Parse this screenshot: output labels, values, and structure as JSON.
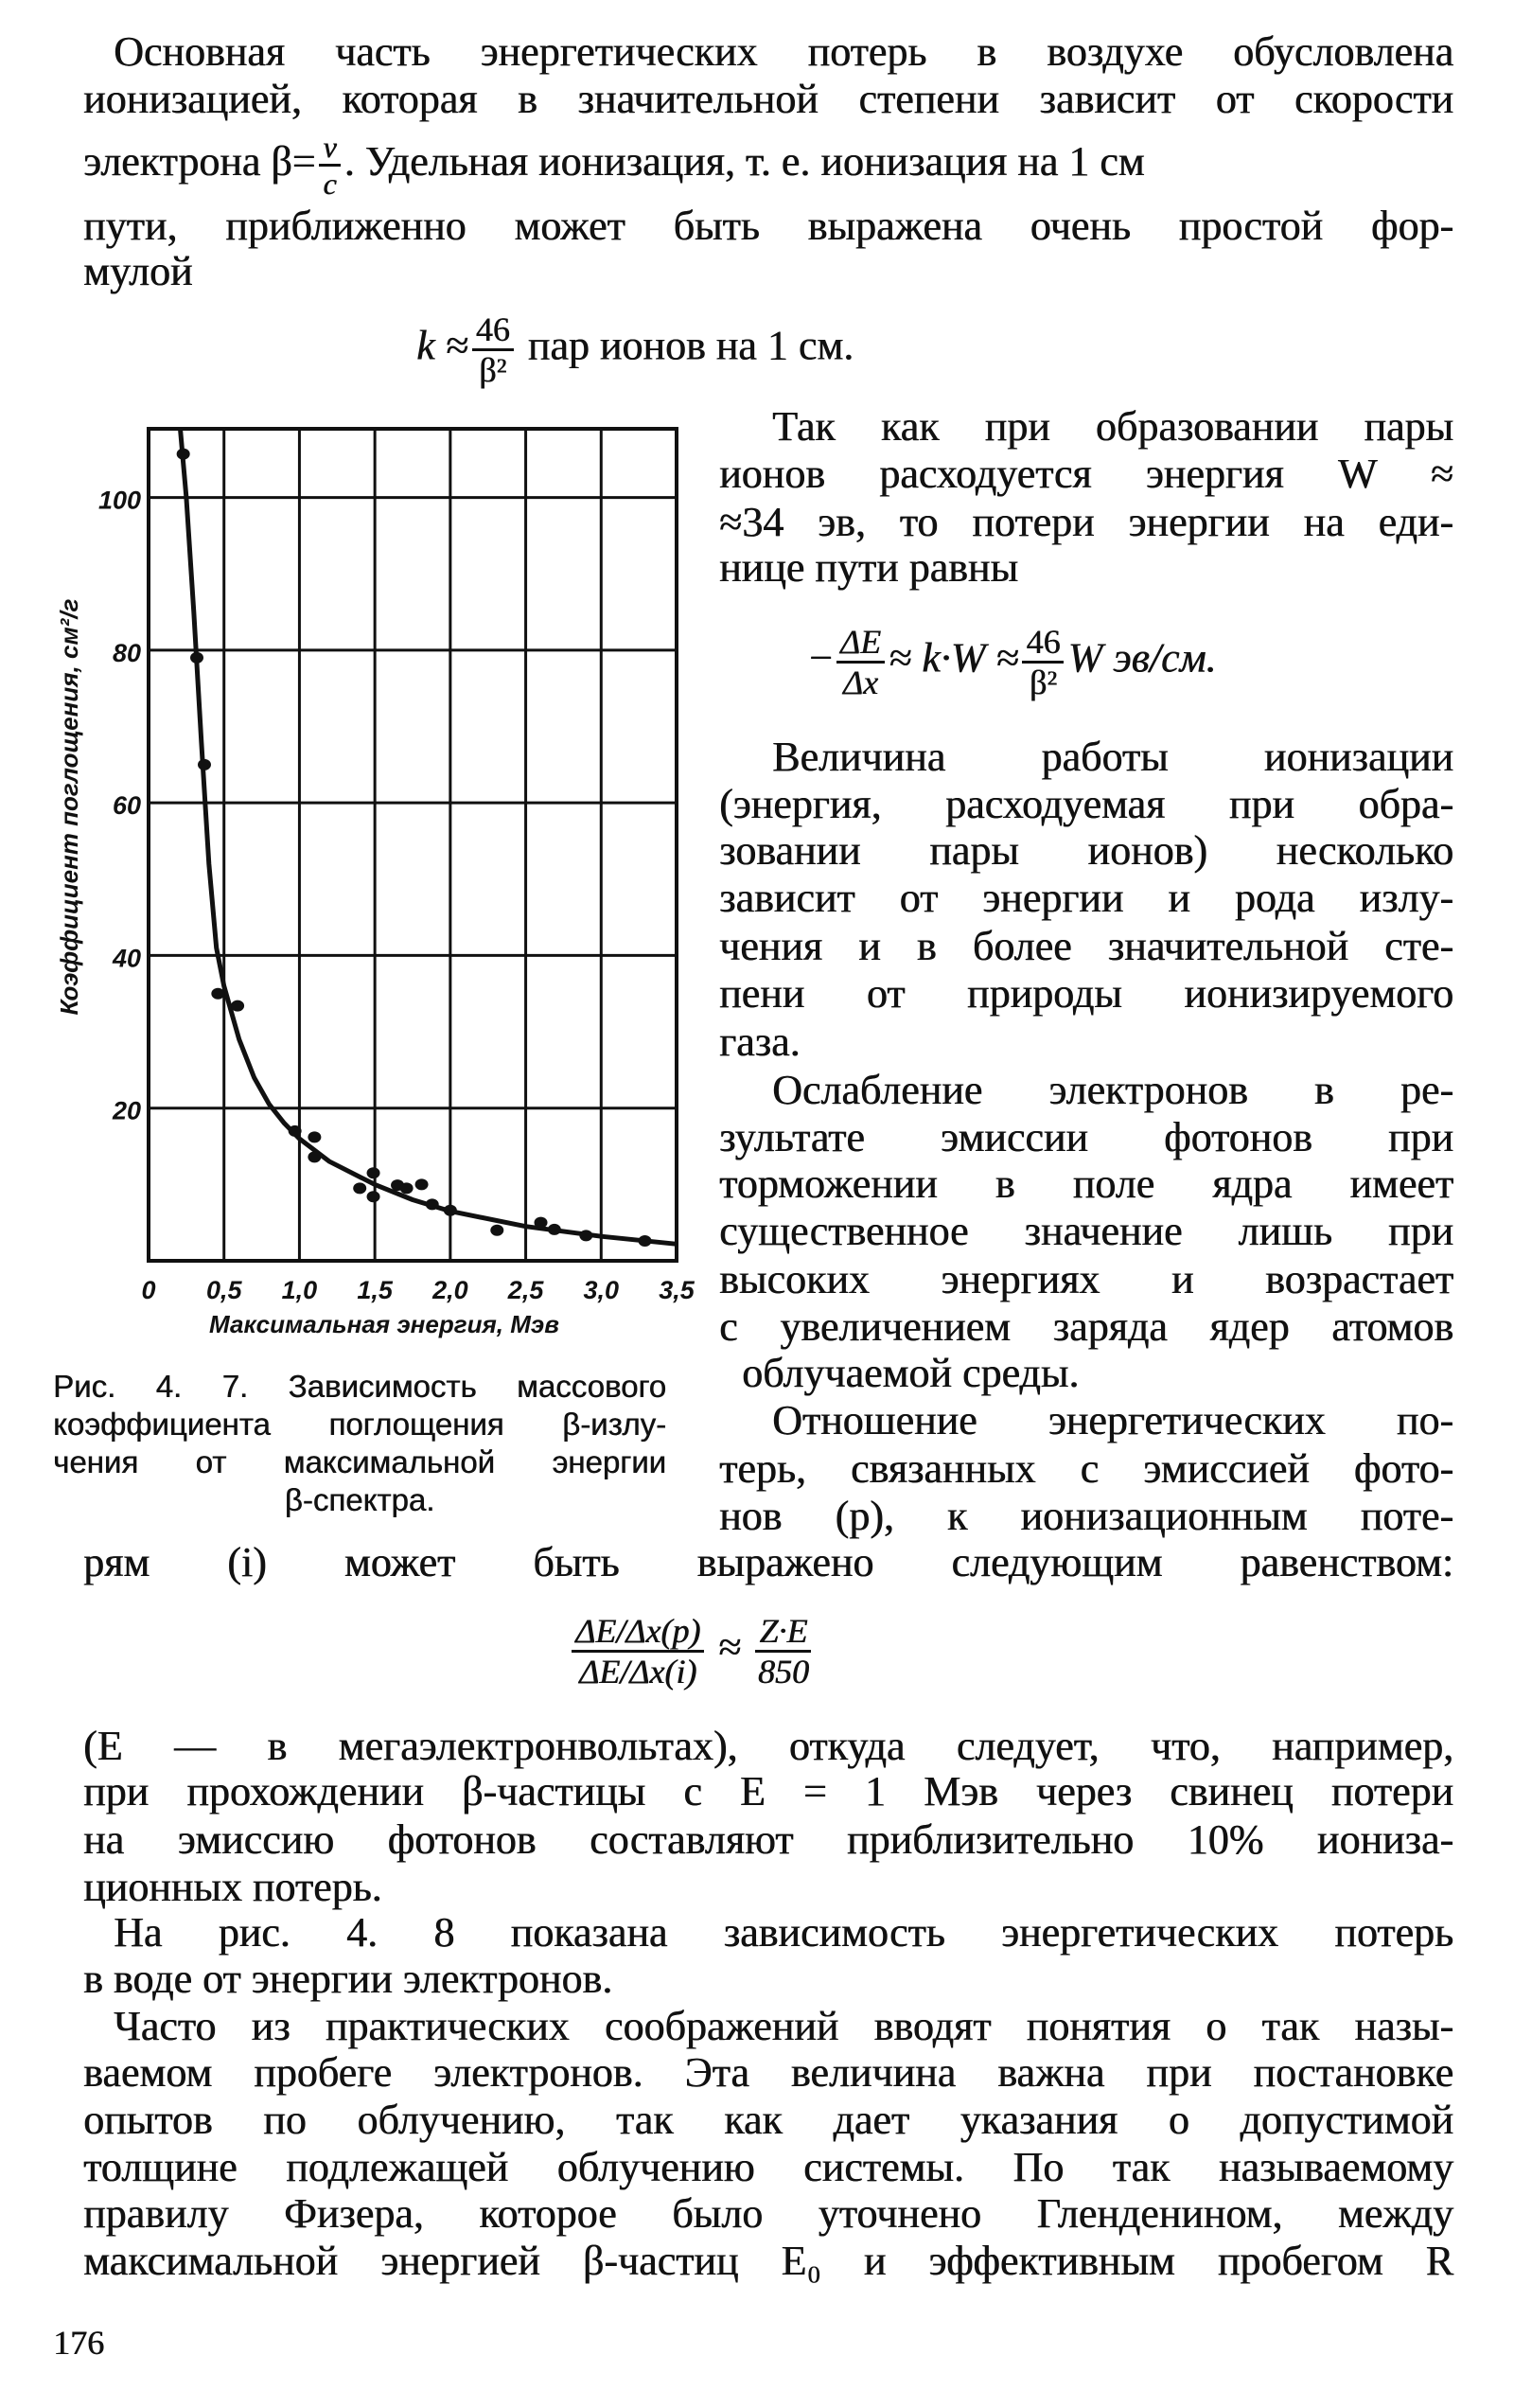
{
  "lines": [
    "Основная часть энергетических потерь в воздухе обусловлена",
    "ионизацией, которая в значительной степени зависит от скорости",
    "пути, приближенно может быть выражена очень простой фор-",
    "мулой",
    "Так как при образовании пары",
    "ионов расходуется энергия W ≈",
    "≈34 эв, то потери энергии на еди-",
    "нице пути равны",
    "Величина работы ионизации",
    "(энергия, расходуемая при обра-",
    "зовании пары ионов) несколько",
    "зависит от энергии и рода излу-",
    "чения и в более значительной сте-",
    "пени от природы ионизируемого",
    "газа.",
    "Ослабление электронов в ре-",
    "зультате эмиссии фотонов при",
    "торможении в поле ядра имеет",
    "существенное значение лишь при",
    "высоких энергиях и возрастает",
    "с увеличением заряда ядер атомов",
    "облучаемой среды.",
    "Отношение энергетических по-",
    "терь, связанных с эмиссией фото-",
    "нов (p), к ионизационным поте-",
    "рям (i) может быть выражено следующим равенством:",
    "(E — в мегаэлектронвольтах), откуда следует, что, например,",
    "при прохождении β-частицы с E = 1 Мэв через свинец потери",
    "на эмиссию фотонов составляют приблизительно 10% иониза-",
    "ционных потерь.",
    "На рис. 4. 8 показана зависимость энергетических потерь",
    "в воде от энергии электронов.",
    "Часто из практических соображений вводят понятия о так назы-",
    "ваемом пробеге электронов. Эта величина важна при постановке",
    "опытов по облучению, так как дает указания о допустимой",
    "толщине подлежащей облучению системы. По так называемому",
    "правилу Физера, которое было уточнено Гленденином, между",
    "максимальной энергией β-частиц E₀ и эффективным пробегом R"
  ],
  "line3": {
    "pre": "электрона β=",
    "num": "v",
    "den": "c",
    "post": ". Удельная ионизация,  т. е. ионизация на 1 см"
  },
  "formula1": {
    "lhs": "k ≈",
    "num": "46",
    "den": "β²",
    "rhs": "пар ионов на 1 см."
  },
  "formula2": {
    "lhs": "−",
    "num1": "ΔE",
    "den1": "Δx",
    "mid": "≈ k·W ≈",
    "num2": "46",
    "den2": "β²",
    "rhs": "W эв/см."
  },
  "formula3": {
    "num1": "ΔE/Δx(p)",
    "den1": "ΔE/Δx(i)",
    "mid": "≈",
    "num2": "Z·E",
    "den2": "850"
  },
  "caption": [
    "Рис.  4. 7.  Зависимость  массового",
    "коэффициента  поглощения  β-излу-",
    "чения  от  максимальной  энергии",
    "β-спектра."
  ],
  "page_number": "176",
  "chart_data": {
    "type": "scatter",
    "title": "",
    "xlabel": "Максимальная энергия, Мэв",
    "ylabel": "Коэффициент поглощения, см²/г",
    "xlim": [
      0,
      3.5
    ],
    "ylim": [
      0,
      109
    ],
    "grid": true,
    "x_ticks": [
      "0",
      "0,5",
      "1,0",
      "1,5",
      "2,0",
      "2,5",
      "3,0",
      "3,5"
    ],
    "x_tick_values": [
      0,
      0.5,
      1.0,
      1.5,
      2.0,
      2.5,
      3.0,
      3.5
    ],
    "y_ticks": [
      "20",
      "40",
      "60",
      "80",
      "100"
    ],
    "y_tick_values": [
      20,
      40,
      60,
      80,
      100
    ],
    "points": [
      [
        0.23,
        105.7
      ],
      [
        0.32,
        79
      ],
      [
        0.37,
        65
      ],
      [
        0.46,
        35
      ],
      [
        0.59,
        33.4
      ],
      [
        0.97,
        17
      ],
      [
        1.1,
        16.2
      ],
      [
        1.1,
        13.6
      ],
      [
        1.4,
        9.5
      ],
      [
        1.49,
        11.5
      ],
      [
        1.49,
        8.4
      ],
      [
        1.65,
        9.9
      ],
      [
        1.71,
        9.5
      ],
      [
        1.81,
        10.0
      ],
      [
        1.88,
        7.4
      ],
      [
        2.0,
        6.6
      ],
      [
        2.31,
        4.0
      ],
      [
        2.6,
        5.0
      ],
      [
        2.69,
        4.1
      ],
      [
        2.9,
        3.3
      ],
      [
        3.29,
        2.6
      ]
    ],
    "curve": [
      [
        0.21,
        109
      ],
      [
        0.25,
        100
      ],
      [
        0.3,
        85
      ],
      [
        0.35,
        68
      ],
      [
        0.4,
        52
      ],
      [
        0.45,
        41
      ],
      [
        0.5,
        36
      ],
      [
        0.6,
        29
      ],
      [
        0.7,
        24
      ],
      [
        0.8,
        20.5
      ],
      [
        0.9,
        18
      ],
      [
        1.0,
        16
      ],
      [
        1.2,
        13
      ],
      [
        1.5,
        10
      ],
      [
        1.75,
        8
      ],
      [
        2.0,
        6.5
      ],
      [
        2.5,
        4.5
      ],
      [
        3.0,
        3.2
      ],
      [
        3.5,
        2.2
      ]
    ],
    "color": "#111111"
  }
}
